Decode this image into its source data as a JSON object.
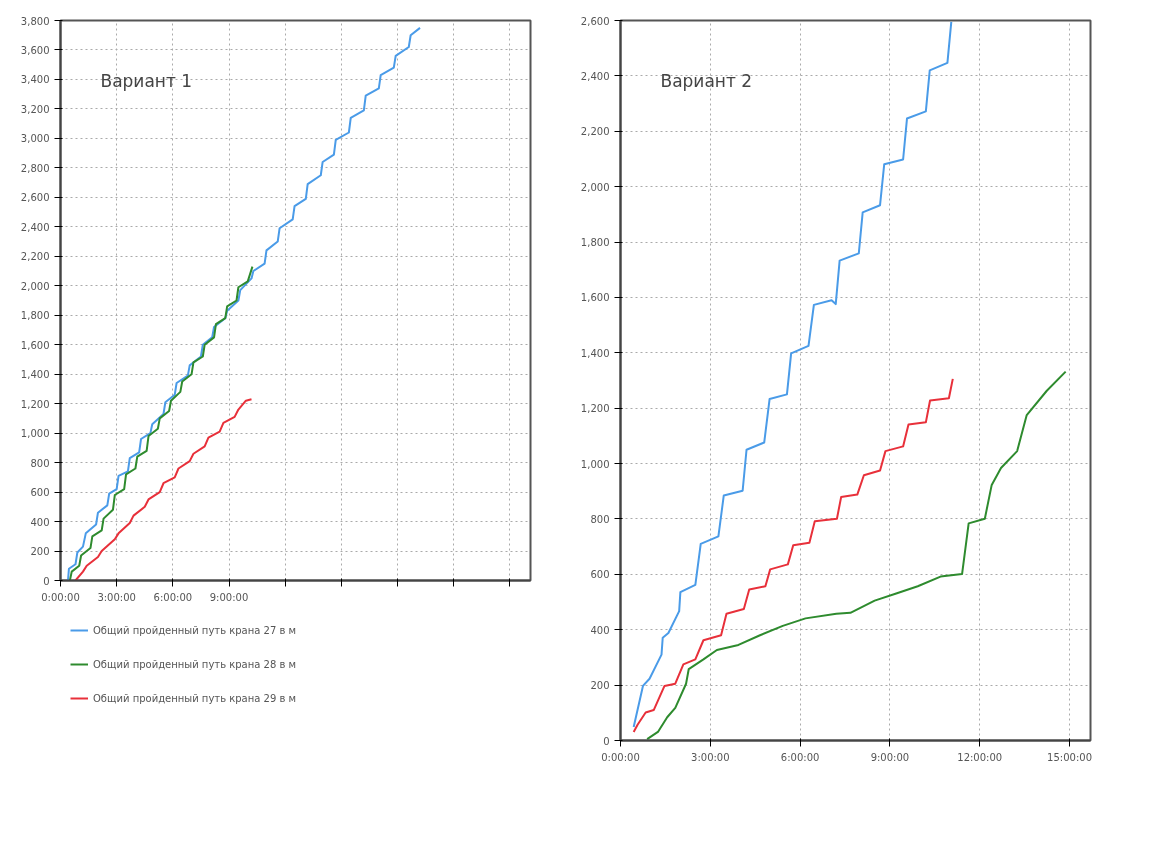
{
  "chart_data": [
    {
      "type": "line",
      "annotations": [
        "Вариант 1"
      ],
      "grid": true,
      "legend": "bottom",
      "xlim": [
        0,
        25.1
      ],
      "ylim": [
        0,
        3800
      ],
      "xticks": [
        {
          "value": 0,
          "label": "0:00:00"
        },
        {
          "value": 3,
          "label": "3:00:00"
        },
        {
          "value": 6,
          "label": "6:00:00"
        },
        {
          "value": 9,
          "label": "9:00:00"
        },
        {
          "value": 12,
          "label": null
        },
        {
          "value": 15,
          "label": null
        },
        {
          "value": 18,
          "label": null
        },
        {
          "value": 21,
          "label": null
        },
        {
          "value": 24,
          "label": null
        }
      ],
      "yticks": [
        0,
        200,
        400,
        600,
        800,
        {
          "value": 1000,
          "label": "1,000"
        },
        {
          "value": 1200,
          "label": "1,200"
        },
        {
          "value": 1400,
          "label": "1,400"
        },
        {
          "value": 1600,
          "label": "1,600"
        },
        {
          "value": 1800,
          "label": "1,800"
        },
        {
          "value": 2000,
          "label": "2,000"
        },
        {
          "value": 2200,
          "label": "2,200"
        },
        {
          "value": 2400,
          "label": "2,400"
        },
        {
          "value": 2600,
          "label": "2,600"
        },
        {
          "value": 2800,
          "label": "2,800"
        },
        {
          "value": 3000,
          "label": "3,000"
        },
        {
          "value": 3200,
          "label": "3,200"
        },
        {
          "value": 3400,
          "label": "3,400"
        },
        {
          "value": 3600,
          "label": "3,600"
        },
        {
          "value": 3800,
          "label": "3,800"
        }
      ],
      "series": [
        {
          "name": "Общий пройденный путь крана 27 в м",
          "color": "#4a9be8",
          "x": [
            0.4,
            0.45,
            0.8,
            0.9,
            1.2,
            1.35,
            1.9,
            2.0,
            2.5,
            2.6,
            3.0,
            3.1,
            3.6,
            3.7,
            4.2,
            4.3,
            4.8,
            4.9,
            5.5,
            5.6,
            6.1,
            6.2,
            6.8,
            6.9,
            7.5,
            7.6,
            8.1,
            8.2,
            8.8,
            8.9,
            9.5,
            9.6,
            10.2,
            10.3,
            10.9,
            11.0,
            11.6,
            11.7,
            12.4,
            12.5,
            13.1,
            13.2,
            13.9,
            14.0,
            14.6,
            14.7,
            15.4,
            15.5,
            16.2,
            16.3,
            17.0,
            17.1,
            17.8,
            17.9,
            18.6,
            18.7,
            19.2
          ],
          "values": [
            0,
            80,
            110,
            190,
            230,
            320,
            380,
            460,
            510,
            590,
            620,
            710,
            740,
            830,
            870,
            960,
            1000,
            1060,
            1130,
            1210,
            1260,
            1340,
            1390,
            1460,
            1520,
            1600,
            1650,
            1720,
            1780,
            1830,
            1900,
            1970,
            2050,
            2100,
            2150,
            2240,
            2300,
            2390,
            2450,
            2540,
            2590,
            2690,
            2750,
            2840,
            2890,
            2990,
            3040,
            3140,
            3190,
            3290,
            3340,
            3430,
            3480,
            3560,
            3620,
            3700,
            3750
          ]
        },
        {
          "name": "Общий пройденный путь крана 28 в м",
          "color": "#2e8b2e",
          "x": [
            0.5,
            0.6,
            1.0,
            1.1,
            1.6,
            1.7,
            2.2,
            2.3,
            2.8,
            2.9,
            3.4,
            3.5,
            4.0,
            4.1,
            4.6,
            4.7,
            5.2,
            5.3,
            5.8,
            5.9,
            6.4,
            6.5,
            7.0,
            7.1,
            7.6,
            7.7,
            8.2,
            8.3,
            8.8,
            8.9,
            9.4,
            9.5,
            10.0,
            10.25
          ],
          "values": [
            0,
            60,
            100,
            170,
            220,
            300,
            340,
            420,
            480,
            580,
            620,
            720,
            760,
            840,
            880,
            980,
            1030,
            1100,
            1150,
            1220,
            1280,
            1350,
            1400,
            1480,
            1520,
            1600,
            1650,
            1740,
            1780,
            1860,
            1900,
            1990,
            2030,
            2130
          ]
        },
        {
          "name": "Общий пройденный путь крана 29 в м",
          "color": "#e8303a",
          "x": [
            0.8,
            1.2,
            1.4,
            2.0,
            2.2,
            2.9,
            3.1,
            3.7,
            3.9,
            4.5,
            4.7,
            5.3,
            5.5,
            6.1,
            6.3,
            6.9,
            7.1,
            7.7,
            7.9,
            8.5,
            8.7,
            9.3,
            9.5,
            9.9,
            10.2
          ],
          "values": [
            0,
            60,
            100,
            160,
            200,
            280,
            320,
            390,
            440,
            500,
            550,
            600,
            660,
            700,
            760,
            810,
            860,
            910,
            970,
            1010,
            1070,
            1110,
            1160,
            1220,
            1230
          ]
        }
      ]
    },
    {
      "type": "line",
      "annotations": [
        "Вариант 2"
      ],
      "grid": true,
      "xlim": [
        0,
        15.7
      ],
      "ylim": [
        0,
        2600
      ],
      "xticks": [
        {
          "value": 0,
          "label": "0:00:00"
        },
        {
          "value": 3,
          "label": "3:00:00"
        },
        {
          "value": 6,
          "label": "6:00:00"
        },
        {
          "value": 9,
          "label": "9:00:00"
        },
        {
          "value": 12,
          "label": "12:00:00"
        },
        {
          "value": 15,
          "label": "15:00:00"
        }
      ],
      "yticks": [
        0,
        200,
        400,
        600,
        800,
        {
          "value": 1000,
          "label": "1,000"
        },
        {
          "value": 1200,
          "label": "1,200"
        },
        {
          "value": 1400,
          "label": "1,400"
        },
        {
          "value": 1600,
          "label": "1,600"
        },
        {
          "value": 1800,
          "label": "1,800"
        },
        {
          "value": 2000,
          "label": "2,000"
        },
        {
          "value": 2200,
          "label": "2,200"
        },
        {
          "value": 2400,
          "label": "2,400"
        },
        {
          "value": 2600,
          "label": "2,600"
        }
      ],
      "series": [
        {
          "color": "#4a9be8",
          "x": [
            0.44,
            0.75,
            0.97,
            1.37,
            1.41,
            1.6,
            1.96,
            2.0,
            2.5,
            2.68,
            3.27,
            3.45,
            4.08,
            4.21,
            4.8,
            4.98,
            5.56,
            5.7,
            6.28,
            6.46,
            7.05,
            7.19,
            7.32,
            7.96,
            8.09,
            8.67,
            8.81,
            9.44,
            9.57,
            10.2,
            10.33,
            10.92,
            11.05
          ],
          "values": [
            49,
            197,
            223,
            310,
            371,
            388,
            467,
            536,
            562,
            710,
            737,
            885,
            902,
            1050,
            1076,
            1233,
            1250,
            1398,
            1425,
            1573,
            1590,
            1576,
            1733,
            1759,
            1907,
            1933,
            2081,
            2098,
            2246,
            2272,
            2420,
            2447,
            2595
          ]
        },
        {
          "color": "#2e8b2e",
          "x": [
            0.89,
            1.25,
            1.56,
            1.83,
            2.19,
            2.28,
            2.77,
            3.22,
            3.94,
            4.66,
            5.42,
            6.18,
            7.21,
            7.68,
            8.49,
            9.21,
            9.93,
            10.69,
            11.41,
            11.63,
            12.17,
            12.4,
            12.71,
            13.25,
            13.57,
            14.24,
            14.87
          ],
          "values": [
            5,
            31,
            84,
            118,
            205,
            258,
            293,
            327,
            345,
            380,
            414,
            441,
            458,
            461,
            505,
            531,
            557,
            592,
            601,
            784,
            801,
            923,
            984,
            1045,
            1175,
            1263,
            1332
          ]
        },
        {
          "color": "#e8303a",
          "x": [
            0.44,
            0.57,
            0.84,
            1.11,
            1.47,
            1.83,
            2.1,
            2.5,
            2.77,
            3.36,
            3.54,
            4.12,
            4.3,
            4.84,
            5.0,
            5.59,
            5.77,
            6.31,
            6.49,
            7.23,
            7.37,
            7.91,
            8.13,
            8.67,
            8.85,
            9.44,
            9.62,
            10.2,
            10.34,
            10.97,
            11.1
          ],
          "values": [
            31,
            57,
            101,
            110,
            197,
            205,
            275,
            293,
            362,
            380,
            458,
            475,
            545,
            557,
            618,
            636,
            705,
            714,
            792,
            801,
            879,
            888,
            958,
            975,
            1045,
            1062,
            1141,
            1149,
            1228,
            1236,
            1306
          ]
        }
      ]
    }
  ]
}
